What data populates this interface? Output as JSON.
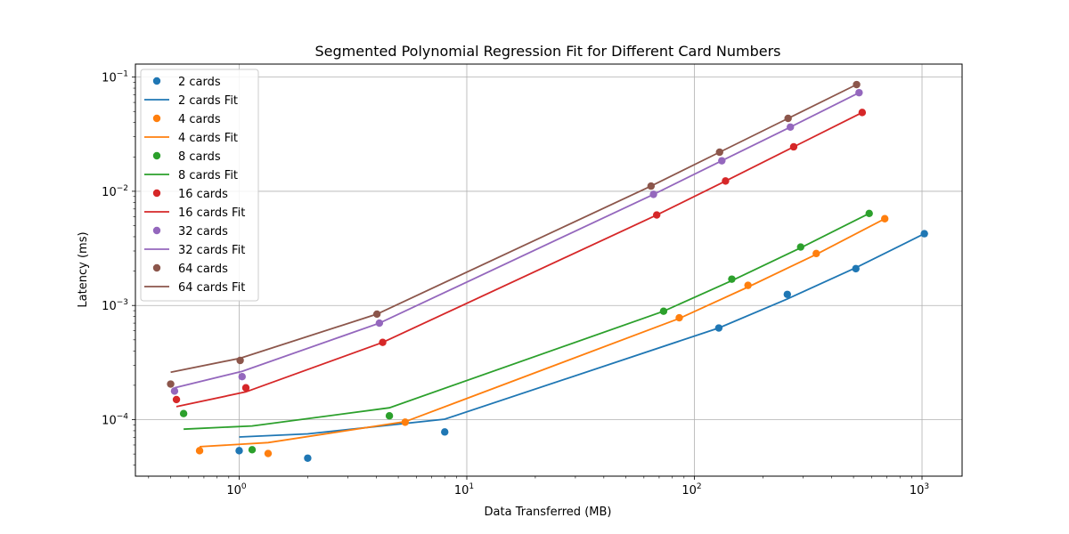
{
  "chart_data": {
    "type": "scatter",
    "title": "Segmented Polynomial Regression Fit for Different Card Numbers",
    "xlabel": "Data Transferred (MB)",
    "ylabel": "Latency (ms)",
    "xscale": "log",
    "yscale": "log",
    "xlim": [
      0.35,
      1500
    ],
    "ylim": [
      3.2e-05,
      0.13
    ],
    "x_ticks": [
      1,
      10,
      100,
      1000
    ],
    "x_tick_labels": [
      {
        "base": "10",
        "exp": "0"
      },
      {
        "base": "10",
        "exp": "1"
      },
      {
        "base": "10",
        "exp": "2"
      },
      {
        "base": "10",
        "exp": "3"
      }
    ],
    "y_ticks": [
      0.0001,
      0.001,
      0.01,
      0.1
    ],
    "y_tick_labels": [
      {
        "base": "10",
        "exp": "−4"
      },
      {
        "base": "10",
        "exp": "−3"
      },
      {
        "base": "10",
        "exp": "−2"
      },
      {
        "base": "10",
        "exp": "−1"
      }
    ],
    "grid": true,
    "legend_position": "upper-left",
    "series": [
      {
        "name": "2 cards",
        "fit_name": "2 cards Fit",
        "color": "#1f77b4",
        "points": [
          [
            1,
            5.35e-05
          ],
          [
            2,
            4.6e-05
          ],
          [
            8,
            7.8e-05
          ],
          [
            128,
            0.000635
          ],
          [
            256,
            0.00125
          ],
          [
            512,
            0.0021
          ],
          [
            1024,
            0.00425
          ]
        ],
        "fit": [
          [
            1,
            7.05e-05
          ],
          [
            2,
            7.5e-05
          ],
          [
            8,
            0.000101
          ],
          [
            128,
            0.000635
          ],
          [
            256,
            0.00114
          ],
          [
            512,
            0.00214
          ],
          [
            1024,
            0.00425
          ]
        ]
      },
      {
        "name": "4 cards",
        "fit_name": "4 cards Fit",
        "color": "#ff7f0e",
        "points": [
          [
            0.67,
            5.35e-05
          ],
          [
            1.34,
            5.05e-05
          ],
          [
            5.36,
            9.5e-05
          ],
          [
            85.8,
            0.00078
          ],
          [
            172,
            0.0015
          ],
          [
            343,
            0.00285
          ],
          [
            686,
            0.00575
          ]
        ],
        "fit": [
          [
            0.67,
            5.8e-05
          ],
          [
            1.34,
            6.3e-05
          ],
          [
            5.36,
            9.6e-05
          ],
          [
            85.8,
            0.00077
          ],
          [
            172,
            0.00145
          ],
          [
            343,
            0.0028
          ],
          [
            686,
            0.00575
          ]
        ]
      },
      {
        "name": "8 cards",
        "fit_name": "8 cards Fit",
        "color": "#2ca02c",
        "points": [
          [
            0.57,
            0.000113
          ],
          [
            1.14,
            5.45e-05
          ],
          [
            4.57,
            0.000108
          ],
          [
            73.2,
            0.00089
          ],
          [
            146,
            0.0017
          ],
          [
            293,
            0.00325
          ],
          [
            586,
            0.0064
          ]
        ],
        "fit": [
          [
            0.57,
            8.25e-05
          ],
          [
            1.14,
            8.8e-05
          ],
          [
            4.57,
            0.000127
          ],
          [
            73.2,
            0.00089
          ],
          [
            146,
            0.00165
          ],
          [
            293,
            0.0032
          ],
          [
            586,
            0.0064
          ]
        ]
      },
      {
        "name": "16 cards",
        "fit_name": "16 cards Fit",
        "color": "#d62728",
        "points": [
          [
            0.53,
            0.00015
          ],
          [
            1.07,
            0.00019
          ],
          [
            4.27,
            0.000475
          ],
          [
            68.3,
            0.0062
          ],
          [
            137,
            0.0123
          ],
          [
            273,
            0.0245
          ],
          [
            546,
            0.049
          ]
        ],
        "fit": [
          [
            0.53,
            0.00013
          ],
          [
            1.07,
            0.000175
          ],
          [
            4.27,
            0.000475
          ],
          [
            68.3,
            0.0062
          ],
          [
            137,
            0.0123
          ],
          [
            273,
            0.0245
          ],
          [
            546,
            0.049
          ]
        ]
      },
      {
        "name": "32 cards",
        "fit_name": "32 cards Fit",
        "color": "#9467bd",
        "points": [
          [
            0.52,
            0.000178
          ],
          [
            1.03,
            0.000238
          ],
          [
            4.13,
            0.0007
          ],
          [
            66.1,
            0.0094
          ],
          [
            132,
            0.0185
          ],
          [
            264,
            0.0365
          ],
          [
            529,
            0.073
          ]
        ],
        "fit": [
          [
            0.52,
            0.00019
          ],
          [
            1.03,
            0.000265
          ],
          [
            4.13,
            0.0007
          ],
          [
            66.1,
            0.0094
          ],
          [
            132,
            0.0185
          ],
          [
            264,
            0.0365
          ],
          [
            529,
            0.073
          ]
        ]
      },
      {
        "name": "64 cards",
        "fit_name": "64 cards Fit",
        "color": "#8c564b",
        "points": [
          [
            0.5,
            0.000205
          ],
          [
            1.01,
            0.00033
          ],
          [
            4.03,
            0.00084
          ],
          [
            64.5,
            0.0111
          ],
          [
            129,
            0.022
          ],
          [
            258,
            0.0435
          ],
          [
            516,
            0.086
          ]
        ],
        "fit": [
          [
            0.5,
            0.00026
          ],
          [
            1.01,
            0.000345
          ],
          [
            4.03,
            0.00084
          ],
          [
            64.5,
            0.0111
          ],
          [
            129,
            0.022
          ],
          [
            258,
            0.0435
          ],
          [
            516,
            0.086
          ]
        ]
      }
    ]
  }
}
